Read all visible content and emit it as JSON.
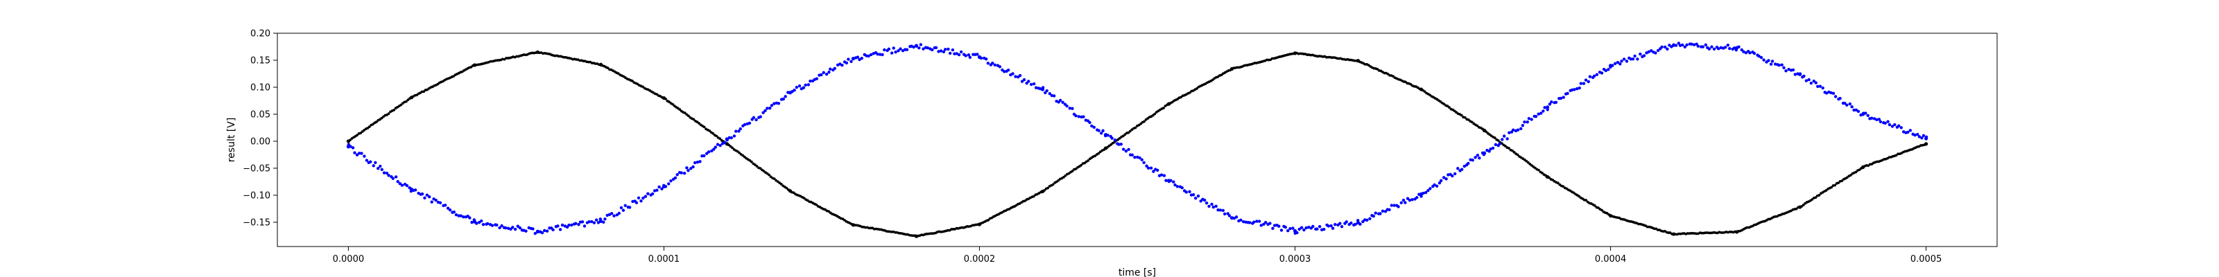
{
  "chart_data": {
    "type": "scatter",
    "xlabel": "time [s]",
    "ylabel": "result [V]",
    "xlim": [
      -2.25e-05,
      0.0005225
    ],
    "ylim": [
      -0.195,
      0.2
    ],
    "xticks": [
      0.0,
      0.0001,
      0.0002,
      0.0003,
      0.0004,
      0.0005
    ],
    "xtick_labels": [
      "0.0000",
      "0.0001",
      "0.0002",
      "0.0003",
      "0.0004",
      "0.0005"
    ],
    "yticks": [
      -0.15,
      -0.1,
      -0.05,
      0.0,
      0.05,
      0.1,
      0.15,
      0.2
    ],
    "ytick_labels": [
      "−0.15",
      "−0.10",
      "−0.05",
      "0.00",
      "0.05",
      "0.10",
      "0.15",
      "0.20"
    ],
    "grid": false,
    "series": [
      {
        "color": "#000000",
        "marker": "dot",
        "x": [
          0.0,
          2e-05,
          4e-05,
          6e-05,
          8e-05,
          0.0001,
          0.00012,
          0.00014,
          0.00016,
          0.00018,
          0.0002,
          0.00022,
          0.00024,
          0.00026,
          0.00028,
          0.0003,
          0.00032,
          0.00034,
          0.00036,
          0.00038,
          0.0004,
          0.00042,
          0.00044,
          0.00046,
          0.00048,
          0.0005
        ],
        "y": [
          0.0,
          0.081,
          0.141,
          0.165,
          0.142,
          0.08,
          -0.005,
          -0.092,
          -0.155,
          -0.176,
          -0.154,
          -0.093,
          -0.013,
          0.069,
          0.134,
          0.163,
          0.149,
          0.096,
          0.02,
          -0.066,
          -0.138,
          -0.172,
          -0.168,
          -0.122,
          -0.048,
          -0.005
        ]
      },
      {
        "color": "#0000ff",
        "marker": "dot",
        "noisy": true,
        "x": [
          0.0,
          2e-05,
          4e-05,
          6e-05,
          8e-05,
          0.0001,
          0.00012,
          0.00014,
          0.00016,
          0.00018,
          0.0002,
          0.00022,
          0.00024,
          0.00026,
          0.00028,
          0.0003,
          0.00032,
          0.00034,
          0.00036,
          0.00038,
          0.0004,
          0.00042,
          0.00044,
          0.00046,
          0.00048,
          0.0005
        ],
        "y": [
          -0.01,
          -0.089,
          -0.149,
          -0.167,
          -0.148,
          -0.084,
          0.003,
          0.09,
          0.153,
          0.177,
          0.156,
          0.096,
          0.012,
          -0.073,
          -0.142,
          -0.166,
          -0.151,
          -0.098,
          -0.022,
          0.063,
          0.14,
          0.178,
          0.173,
          0.124,
          0.05,
          0.005
        ]
      }
    ]
  }
}
